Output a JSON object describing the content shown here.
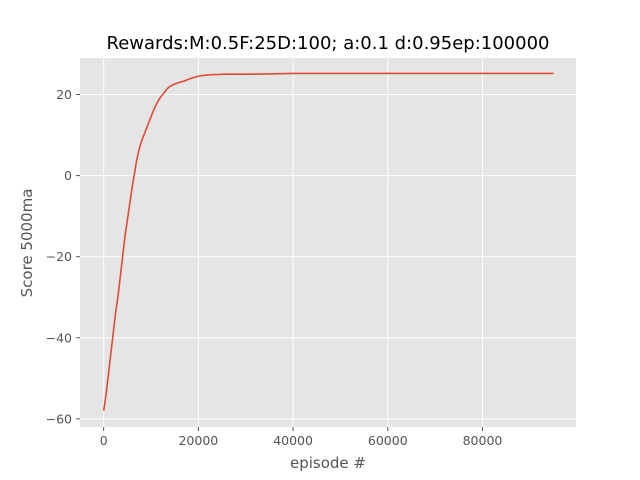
{
  "chart_data": {
    "type": "line",
    "title": "Rewards:M:0.5F:25D:100; a:0.1 d:0.95ep:100000",
    "xlabel": "episode #",
    "ylabel": "Score 5000ma",
    "xlim": [
      -5000,
      99750
    ],
    "ylim": [
      -62,
      29
    ],
    "xticks": [
      0,
      20000,
      40000,
      60000,
      80000
    ],
    "xtick_labels": [
      "0",
      "20000",
      "40000",
      "60000",
      "80000"
    ],
    "yticks": [
      -60,
      -40,
      -20,
      0,
      20
    ],
    "ytick_labels": [
      "−60",
      "−40",
      "−20",
      "0",
      "20"
    ],
    "grid": true,
    "style": "ggplot",
    "series": [
      {
        "color": "#E24A33",
        "x": [
          0,
          500,
          1000,
          1500,
          2000,
          2500,
          3000,
          3500,
          4000,
          4500,
          5000,
          5500,
          6000,
          6500,
          7000,
          7500,
          8000,
          8500,
          9000,
          9500,
          10000,
          10500,
          11000,
          11500,
          12000,
          12500,
          13000,
          13500,
          14000,
          14500,
          15000,
          16000,
          17000,
          18000,
          19000,
          20000,
          21000,
          22000,
          23000,
          24000,
          25000,
          27000,
          30000,
          33000,
          36000,
          40000,
          45000,
          50000,
          60000,
          70000,
          80000,
          90000,
          95000
        ],
        "y": [
          -58,
          -54,
          -49,
          -44,
          -39,
          -34,
          -30,
          -25,
          -20,
          -15,
          -11,
          -7,
          -3,
          0.5,
          4,
          6.5,
          8.5,
          10,
          11.5,
          13,
          14.5,
          16,
          17.3,
          18.4,
          19.3,
          20.1,
          20.8,
          21.5,
          22,
          22.3,
          22.6,
          23,
          23.3,
          23.8,
          24.2,
          24.5,
          24.7,
          24.8,
          24.9,
          24.9,
          25,
          25,
          25,
          25.05,
          25.1,
          25.2,
          25.2,
          25.2,
          25.2,
          25.2,
          25.2,
          25.2,
          25.2
        ]
      }
    ]
  }
}
